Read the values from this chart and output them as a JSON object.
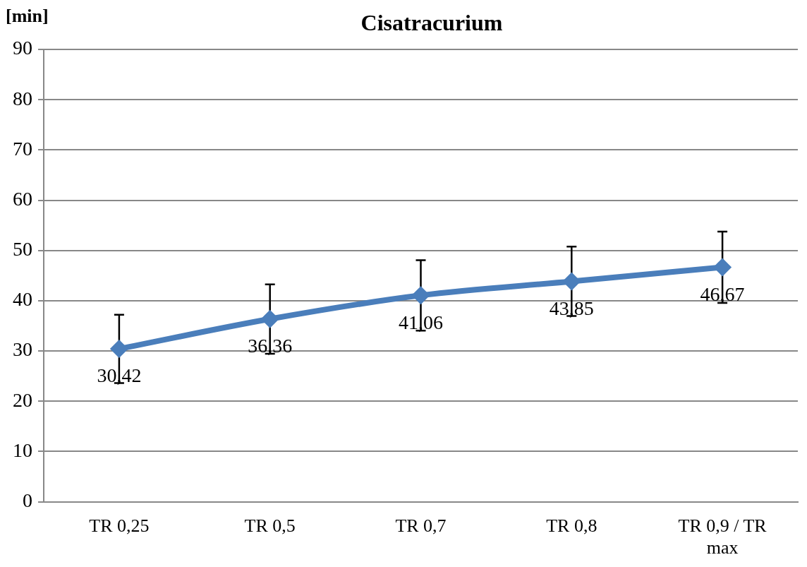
{
  "chart_data": {
    "type": "line",
    "title": "Cisatracurium",
    "ylabel": "[min]",
    "categories": [
      "TR 0,25",
      "TR 0,5",
      "TR 0,7",
      "TR 0,8",
      "TR 0,9 / TR max"
    ],
    "series": [
      {
        "color": "#4a7ebb",
        "values": [
          30.42,
          36.36,
          41.06,
          43.85,
          46.67
        ],
        "errors": [
          6.8,
          6.9,
          7.0,
          6.9,
          7.1
        ],
        "value_labels": [
          "30,42",
          "36,36",
          "41,06",
          "43,85",
          "46,67"
        ]
      }
    ],
    "ylim": [
      0,
      90
    ],
    "yticks": [
      0,
      10,
      20,
      30,
      40,
      50,
      60,
      70,
      80,
      90
    ],
    "grid": "y",
    "legend": false,
    "marker": "diamond",
    "line_style": "solid"
  }
}
